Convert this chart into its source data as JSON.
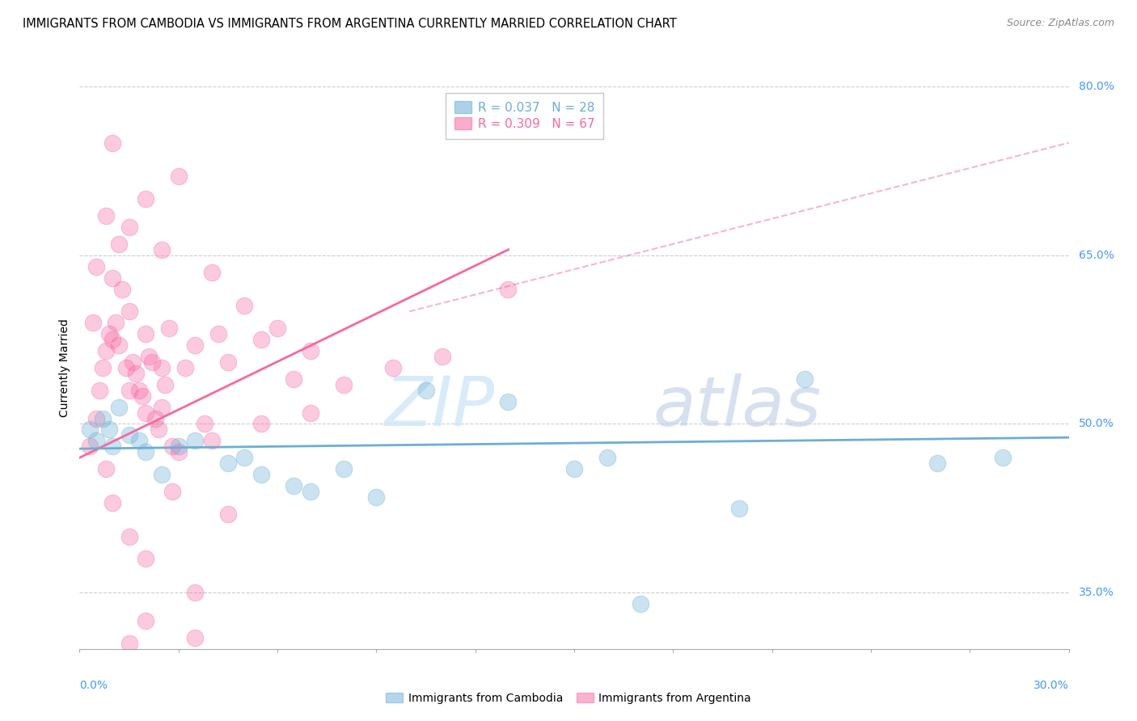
{
  "title": "IMMIGRANTS FROM CAMBODIA VS IMMIGRANTS FROM ARGENTINA CURRENTLY MARRIED CORRELATION CHART",
  "source": "Source: ZipAtlas.com",
  "ylabel": "Currently Married",
  "xlim": [
    0.0,
    30.0
  ],
  "ylim": [
    30.0,
    80.0
  ],
  "yticks": [
    35.0,
    50.0,
    65.0,
    80.0
  ],
  "legend_entries": [
    {
      "label": "R = 0.037   N = 28",
      "color": "#6baed6"
    },
    {
      "label": "R = 0.309   N = 67",
      "color": "#f768a1"
    }
  ],
  "legend_bottom": [
    "Immigrants from Cambodia",
    "Immigrants from Argentina"
  ],
  "cambodia_color": "#6baed6",
  "argentina_color": "#f768a1",
  "cambodia_points": [
    [
      0.3,
      49.5
    ],
    [
      0.5,
      48.5
    ],
    [
      0.7,
      50.5
    ],
    [
      0.9,
      49.5
    ],
    [
      1.0,
      48.0
    ],
    [
      1.2,
      51.5
    ],
    [
      1.5,
      49.0
    ],
    [
      1.8,
      48.5
    ],
    [
      2.0,
      47.5
    ],
    [
      2.5,
      45.5
    ],
    [
      3.0,
      48.0
    ],
    [
      3.5,
      48.5
    ],
    [
      4.5,
      46.5
    ],
    [
      5.0,
      47.0
    ],
    [
      5.5,
      45.5
    ],
    [
      6.5,
      44.5
    ],
    [
      7.0,
      44.0
    ],
    [
      8.0,
      46.0
    ],
    [
      9.0,
      43.5
    ],
    [
      10.5,
      53.0
    ],
    [
      13.0,
      52.0
    ],
    [
      16.0,
      47.0
    ],
    [
      20.0,
      42.5
    ],
    [
      22.0,
      54.0
    ],
    [
      26.0,
      46.5
    ],
    [
      28.0,
      47.0
    ],
    [
      17.0,
      34.0
    ],
    [
      15.0,
      46.0
    ]
  ],
  "argentina_points": [
    [
      0.3,
      48.0
    ],
    [
      0.5,
      50.5
    ],
    [
      0.7,
      55.0
    ],
    [
      0.8,
      56.5
    ],
    [
      0.9,
      58.0
    ],
    [
      1.0,
      57.5
    ],
    [
      1.1,
      59.0
    ],
    [
      1.2,
      57.0
    ],
    [
      1.3,
      62.0
    ],
    [
      1.4,
      55.0
    ],
    [
      1.5,
      53.0
    ],
    [
      1.6,
      55.5
    ],
    [
      1.7,
      54.5
    ],
    [
      1.8,
      53.0
    ],
    [
      1.9,
      52.5
    ],
    [
      2.0,
      51.0
    ],
    [
      2.1,
      56.0
    ],
    [
      2.2,
      55.5
    ],
    [
      2.3,
      50.5
    ],
    [
      2.4,
      49.5
    ],
    [
      2.5,
      51.5
    ],
    [
      2.6,
      53.5
    ],
    [
      2.7,
      58.5
    ],
    [
      2.8,
      48.0
    ],
    [
      3.0,
      47.5
    ],
    [
      3.2,
      55.0
    ],
    [
      3.5,
      57.0
    ],
    [
      3.8,
      50.0
    ],
    [
      4.0,
      48.5
    ],
    [
      4.2,
      58.0
    ],
    [
      4.5,
      55.5
    ],
    [
      5.0,
      60.5
    ],
    [
      5.5,
      57.5
    ],
    [
      6.0,
      58.5
    ],
    [
      6.5,
      54.0
    ],
    [
      7.0,
      56.5
    ],
    [
      0.5,
      64.0
    ],
    [
      0.8,
      68.5
    ],
    [
      1.0,
      75.0
    ],
    [
      1.2,
      66.0
    ],
    [
      1.5,
      67.5
    ],
    [
      2.0,
      70.0
    ],
    [
      2.5,
      65.5
    ],
    [
      3.0,
      72.0
    ],
    [
      4.0,
      63.5
    ],
    [
      0.4,
      59.0
    ],
    [
      0.6,
      53.0
    ],
    [
      1.0,
      63.0
    ],
    [
      1.5,
      60.0
    ],
    [
      2.0,
      58.0
    ],
    [
      2.5,
      55.0
    ],
    [
      3.5,
      35.0
    ],
    [
      2.0,
      38.0
    ],
    [
      1.5,
      40.0
    ],
    [
      1.0,
      43.0
    ],
    [
      0.8,
      46.0
    ],
    [
      4.5,
      42.0
    ],
    [
      2.8,
      44.0
    ],
    [
      5.5,
      50.0
    ],
    [
      7.0,
      51.0
    ],
    [
      8.0,
      53.5
    ],
    [
      9.5,
      55.0
    ],
    [
      11.0,
      56.0
    ],
    [
      13.0,
      62.0
    ],
    [
      3.5,
      31.0
    ],
    [
      2.0,
      32.5
    ],
    [
      1.5,
      30.5
    ]
  ],
  "cambodia_trend": {
    "x": [
      0,
      30
    ],
    "y": [
      47.8,
      48.8
    ]
  },
  "argentina_trend": {
    "x": [
      0,
      13
    ],
    "y": [
      47.0,
      65.5
    ]
  },
  "dashed_trend": {
    "x": [
      10,
      30
    ],
    "y": [
      60.0,
      75.0
    ]
  },
  "watermark_zip": "ZIP",
  "watermark_atlas": "atlas",
  "background_color": "#ffffff",
  "grid_color": "#cccccc",
  "title_fontsize": 10.5,
  "source_fontsize": 9,
  "axis_label_fontsize": 10,
  "tick_label_fontsize": 10,
  "ytick_color": "#4499ff",
  "xtick_color": "#4499ff"
}
